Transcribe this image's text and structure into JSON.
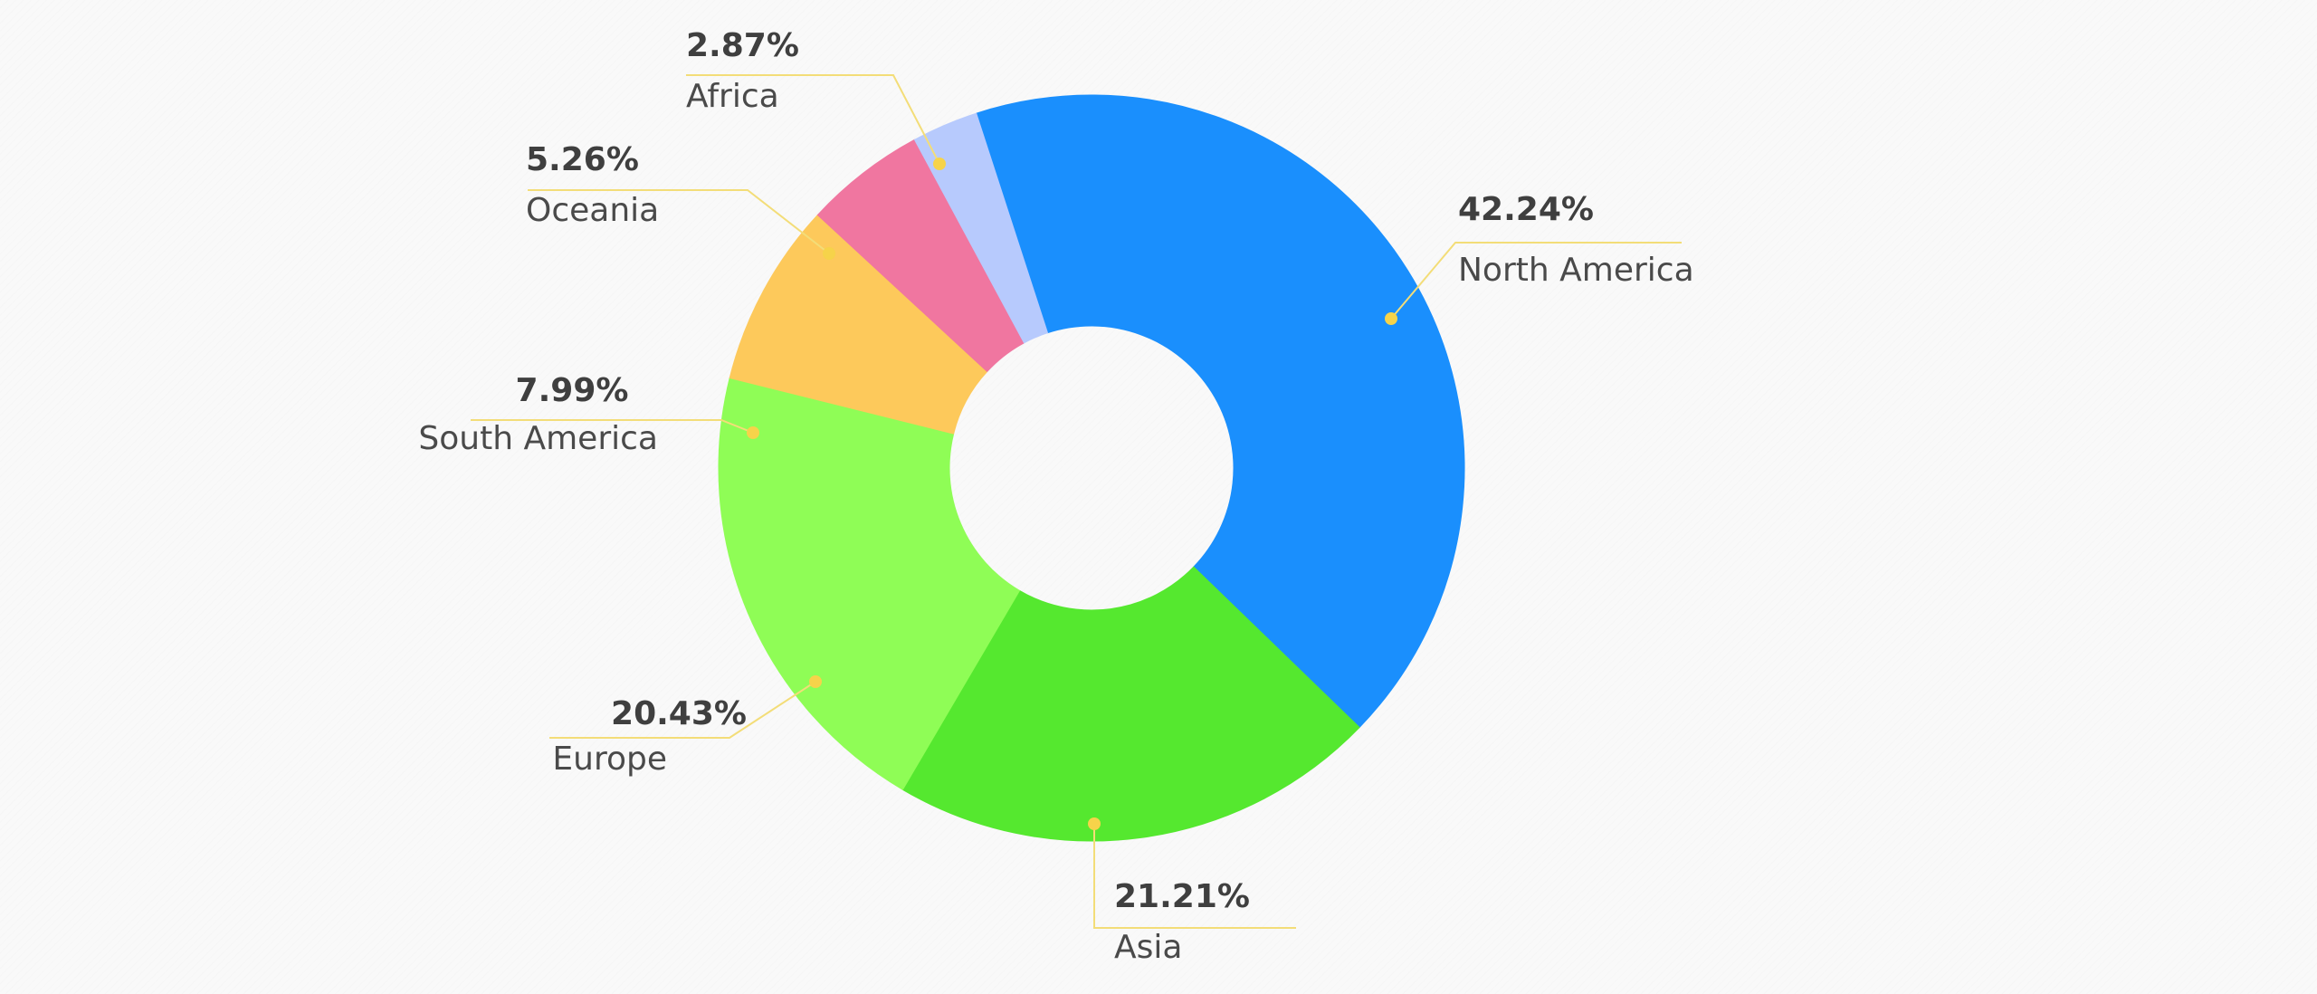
{
  "chart_data": {
    "type": "pie",
    "style": "donut",
    "title": "",
    "start_angle_deg": -18,
    "slices": [
      {
        "label": "North America",
        "value": 42.24,
        "display": "42.24%",
        "color": "#1a8ffd"
      },
      {
        "label": "Asia",
        "value": 21.21,
        "display": "21.21%",
        "color": "#55e82f"
      },
      {
        "label": "Europe",
        "value": 20.43,
        "display": "20.43%",
        "color": "#8ffd56"
      },
      {
        "label": "South America",
        "value": 7.99,
        "display": "7.99%",
        "color": "#fdc95b"
      },
      {
        "label": "Oceania",
        "value": 5.26,
        "display": "5.26%",
        "color": "#f076a0"
      },
      {
        "label": "Africa",
        "value": 2.87,
        "display": "2.87%",
        "color": "#b7cafd"
      }
    ],
    "legend": "none",
    "label_style": "callouts with leader lines",
    "leader_color": "#f3dd78"
  }
}
